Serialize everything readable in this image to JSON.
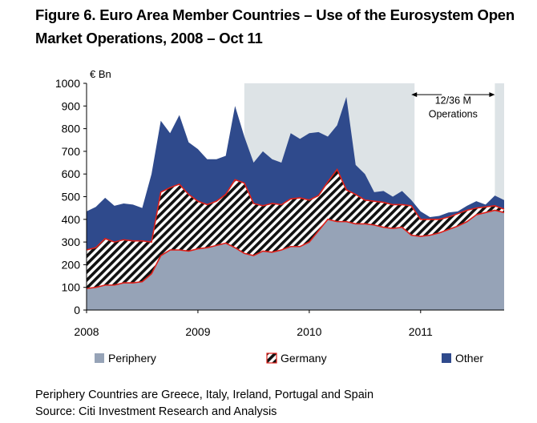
{
  "figure": {
    "title_line1": "Figure 6. Euro Area Member Countries – Use of the Eurosystem Open",
    "title_line2": "Market Operations, 2008 – Oct 11",
    "footnote": "Periphery Countries are Greece, Italy, Ireland, Portugal and Spain",
    "source": "Source: Citi Investment Research and Analysis"
  },
  "chart_data": {
    "type": "area",
    "stacked": true,
    "unit_label": "€ Bn",
    "ylim": [
      0,
      1000
    ],
    "y_ticks": [
      0,
      100,
      200,
      300,
      400,
      500,
      600,
      700,
      800,
      900,
      1000
    ],
    "x_tick_labels": [
      "2008",
      "2009",
      "2010",
      "2011"
    ],
    "x_range": [
      "2008-01",
      "2011-10"
    ],
    "categories": [
      "2008-01",
      "2008-02",
      "2008-03",
      "2008-04",
      "2008-05",
      "2008-06",
      "2008-07",
      "2008-08",
      "2008-09",
      "2008-10",
      "2008-11",
      "2008-12",
      "2009-01",
      "2009-02",
      "2009-03",
      "2009-04",
      "2009-05",
      "2009-06",
      "2009-07",
      "2009-08",
      "2009-09",
      "2009-10",
      "2009-11",
      "2009-12",
      "2010-01",
      "2010-02",
      "2010-03",
      "2010-04",
      "2010-05",
      "2010-06",
      "2010-07",
      "2010-08",
      "2010-09",
      "2010-10",
      "2010-11",
      "2010-12",
      "2011-01",
      "2011-02",
      "2011-03",
      "2011-04",
      "2011-05",
      "2011-06",
      "2011-07",
      "2011-08",
      "2011-09",
      "2011-10"
    ],
    "series": [
      {
        "name": "Periphery",
        "color": "#96a3b7",
        "values": [
          95,
          100,
          110,
          110,
          120,
          120,
          125,
          160,
          240,
          265,
          265,
          260,
          270,
          275,
          285,
          295,
          275,
          250,
          240,
          260,
          255,
          265,
          280,
          280,
          300,
          350,
          400,
          390,
          390,
          380,
          380,
          375,
          365,
          360,
          365,
          330,
          325,
          330,
          340,
          355,
          370,
          390,
          420,
          430,
          440,
          430
        ]
      },
      {
        "name": "Germany",
        "color": "#000000",
        "values": [
          170,
          175,
          205,
          190,
          190,
          185,
          180,
          140,
          280,
          275,
          290,
          250,
          210,
          190,
          195,
          215,
          300,
          310,
          230,
          200,
          215,
          200,
          210,
          215,
          185,
          155,
          165,
          230,
          140,
          130,
          105,
          105,
          110,
          105,
          100,
          130,
          75,
          70,
          60,
          55,
          55,
          50,
          30,
          25,
          20,
          15
        ]
      },
      {
        "name": "Other",
        "color": "#2f4a8c",
        "values": [
          170,
          180,
          180,
          160,
          160,
          160,
          145,
          300,
          315,
          240,
          305,
          230,
          230,
          200,
          185,
          170,
          325,
          205,
          180,
          240,
          195,
          185,
          290,
          260,
          295,
          280,
          200,
          195,
          410,
          130,
          115,
          40,
          50,
          35,
          60,
          25,
          35,
          10,
          15,
          20,
          10,
          20,
          30,
          10,
          45,
          40
        ]
      }
    ],
    "shaded_periods": [
      {
        "from": "2009-06",
        "to": "2010-12",
        "color": "#dde3e6"
      },
      {
        "from": "2011-09",
        "to": "2011-10",
        "color": "#dde3e6"
      }
    ],
    "annotation": {
      "line1": "12/36 M",
      "line2": "Operations",
      "from": "2010-12",
      "to": "2011-09"
    },
    "legend_position": "bottom",
    "grid": false
  }
}
